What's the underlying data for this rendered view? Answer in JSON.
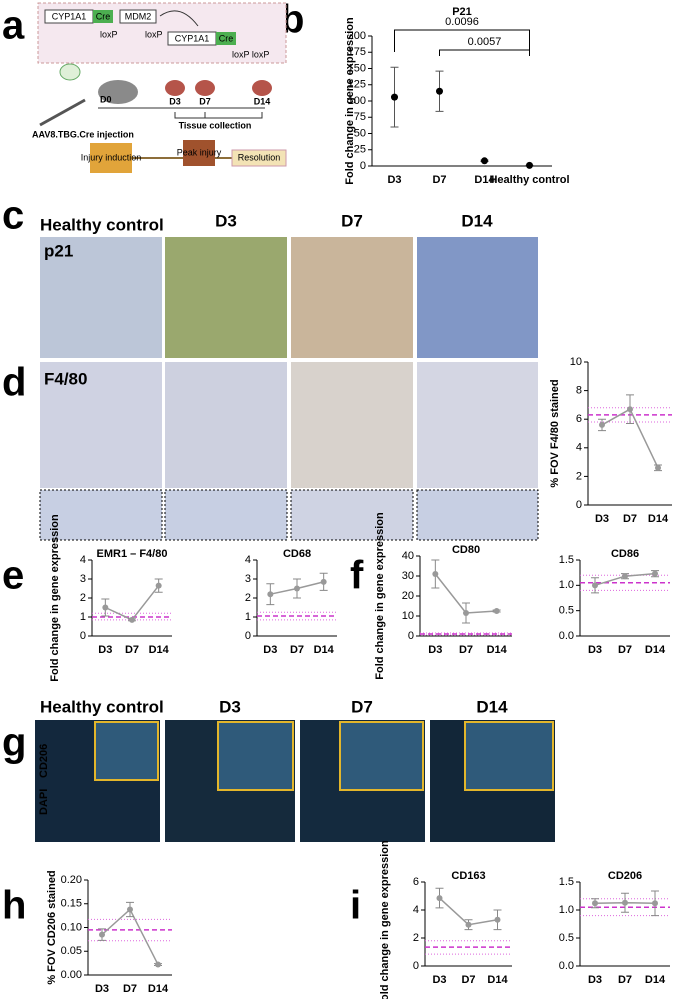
{
  "panel_labels": [
    "a",
    "b",
    "c",
    "d",
    "e",
    "f",
    "g",
    "h",
    "i"
  ],
  "schematic": {
    "gene1": "CYP1A1",
    "cre1": "Cre",
    "gene2": "MDM2",
    "lox1": "loxP",
    "lox2": "loxP",
    "gene3": "CYP1A1",
    "cre2": "Cre",
    "lox3": "loxP loxP",
    "injection": "AAV8.TBG.Cre injection",
    "days": [
      "D0",
      "D3",
      "D7",
      "D14"
    ],
    "collection": "Tissue collection",
    "phases": [
      "Injury induction",
      "Peak injury",
      "Resolution"
    ]
  },
  "micrographs": {
    "columns": [
      "Healthy control",
      "D3",
      "D7",
      "D14"
    ],
    "c_stain": "p21",
    "d_stain": "F4/80",
    "g_dapi": "DAPI",
    "g_marker": "CD206"
  },
  "chart_data": [
    {
      "type": "errorbar",
      "title": "P21",
      "ylabel": "Fold change in gene expression",
      "categories": [
        "D3",
        "D7",
        "D14",
        "Healthy control"
      ],
      "values": [
        106,
        115,
        8,
        1
      ],
      "errors": [
        46,
        31,
        1,
        0
      ],
      "color": "#000000",
      "ylim": [
        0,
        200
      ],
      "yticks": [
        0,
        25,
        50,
        75,
        100,
        125,
        150,
        175,
        200
      ],
      "annotations": [
        "0.0096",
        "0.0057"
      ]
    },
    {
      "type": "line",
      "ylabel": "% FOV F4/80 stained",
      "categories": [
        "D3",
        "D7",
        "D14"
      ],
      "values": [
        5.6,
        6.7,
        2.6
      ],
      "errors": [
        0.4,
        1.0,
        0.2
      ],
      "color": "#999999",
      "ylim": [
        0,
        10
      ],
      "yticks": [
        0,
        2,
        4,
        6,
        8,
        10
      ],
      "reference": {
        "mean": 6.3,
        "low": 5.8,
        "high": 6.8
      }
    },
    {
      "type": "line",
      "title": "EMR1 – F4/80",
      "ylabel": "Fold change in gene expression",
      "categories": [
        "D3",
        "D7",
        "D14"
      ],
      "values": [
        1.5,
        0.85,
        2.65
      ],
      "errors": [
        0.45,
        0.05,
        0.35
      ],
      "color": "#999999",
      "ylim": [
        0,
        4
      ],
      "yticks": [
        0,
        1,
        2,
        3,
        4
      ],
      "reference": {
        "mean": 1.0,
        "low": 0.85,
        "high": 1.2
      }
    },
    {
      "type": "line",
      "title": "CD68",
      "categories": [
        "D3",
        "D7",
        "D14"
      ],
      "values": [
        2.2,
        2.5,
        2.85
      ],
      "errors": [
        0.55,
        0.5,
        0.45
      ],
      "color": "#999999",
      "ylim": [
        0,
        4
      ],
      "yticks": [
        0,
        1,
        2,
        3,
        4
      ],
      "reference": {
        "mean": 1.05,
        "low": 0.85,
        "high": 1.25
      }
    },
    {
      "type": "line",
      "title": "CD80",
      "ylabel": "Fold change in gene expression",
      "categories": [
        "D3",
        "D7",
        "D14"
      ],
      "values": [
        31,
        11.5,
        12.5
      ],
      "errors": [
        7,
        5,
        0.5
      ],
      "color": "#999999",
      "ylim": [
        0,
        40
      ],
      "yticks": [
        0,
        10,
        20,
        30,
        40
      ],
      "reference": {
        "mean": 1,
        "low": 0.5,
        "high": 1.5
      }
    },
    {
      "type": "line",
      "title": "CD86",
      "categories": [
        "D3",
        "D7",
        "D14"
      ],
      "values": [
        1.0,
        1.18,
        1.23
      ],
      "errors": [
        0.15,
        0.05,
        0.06
      ],
      "color": "#999999",
      "ylim": [
        0,
        1.5
      ],
      "yticks": [
        {
          "value": 0,
          "label": "0.0"
        },
        0.5,
        {
          "value": 1,
          "label": "1.0"
        },
        1.5
      ],
      "reference": {
        "mean": 1.05,
        "low": 0.9,
        "high": 1.2
      }
    },
    {
      "type": "line",
      "ylabel": "% FOV CD206 stained",
      "categories": [
        "D3",
        "D7",
        "D14"
      ],
      "values": [
        0.085,
        0.138,
        0.022
      ],
      "errors": [
        0.012,
        0.015,
        0.002
      ],
      "color": "#999999",
      "ylim": [
        0,
        0.2
      ],
      "yticks": [
        {
          "value": 0,
          "label": "0.00"
        },
        0.05,
        {
          "value": 0.1,
          "label": "0.10"
        },
        0.15,
        {
          "value": 0.2,
          "label": "0.20"
        }
      ],
      "reference": {
        "mean": 0.095,
        "low": 0.072,
        "high": 0.117
      }
    },
    {
      "type": "line",
      "title": "CD163",
      "ylabel": "Fold change in gene expression",
      "categories": [
        "D3",
        "D7",
        "D14"
      ],
      "values": [
        4.85,
        2.95,
        3.3
      ],
      "errors": [
        0.7,
        0.35,
        0.7
      ],
      "color": "#999999",
      "ylim": [
        0,
        6
      ],
      "yticks": [
        0,
        2,
        4,
        6
      ],
      "reference": {
        "mean": 1.35,
        "low": 0.85,
        "high": 1.8
      }
    },
    {
      "type": "line",
      "title": "CD206",
      "categories": [
        "D3",
        "D7",
        "D14"
      ],
      "values": [
        1.12,
        1.13,
        1.12
      ],
      "errors": [
        0.08,
        0.17,
        0.22
      ],
      "color": "#999999",
      "ylim": [
        0,
        1.5
      ],
      "yticks": [
        {
          "value": 0,
          "label": "0.0"
        },
        0.5,
        {
          "value": 1,
          "label": "1.0"
        },
        1.5
      ],
      "reference": {
        "mean": 1.05,
        "low": 0.9,
        "high": 1.2
      }
    }
  ]
}
